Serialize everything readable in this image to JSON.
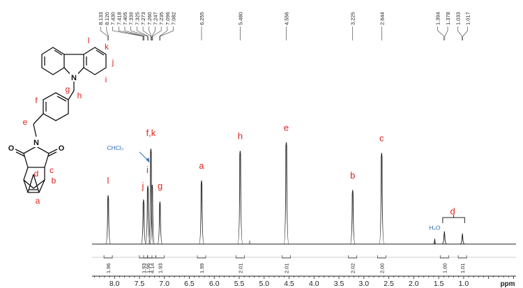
{
  "chart_data": {
    "type": "line",
    "title": "",
    "xlabel": "ppm",
    "ylabel": "",
    "xlim": [
      8.45,
      -0.05
    ],
    "x_reversed": true,
    "grid": false,
    "x_ticks": [
      "8.0",
      "7.5",
      "7.0",
      "6.5",
      "6.0",
      "5.5",
      "5.0",
      "4.5",
      "4.0",
      "3.5",
      "3.0",
      "2.5",
      "2.0",
      "1.5",
      "1.0",
      "ppm"
    ],
    "x_tick_values": [
      8.0,
      7.5,
      7.0,
      6.5,
      6.0,
      5.5,
      5.0,
      4.5,
      4.0,
      3.5,
      3.0,
      2.5,
      2.0,
      1.5,
      1.0
    ],
    "peak_picks": [
      "8.133",
      "8.120",
      "7.430",
      "7.418",
      "7.405",
      "7.339",
      "7.325",
      "7.273",
      "7.260",
      "7.247",
      "7.235",
      "7.096",
      "7.082",
      "6.255",
      "5.480",
      "4.556",
      "3.225",
      "2.644",
      "1.394",
      "1.378",
      "1.033",
      "1.017"
    ],
    "peaks": [
      {
        "shift": 8.127,
        "height": 0.46
      },
      {
        "shift": 7.418,
        "height": 0.42
      },
      {
        "shift": 7.332,
        "height": 0.55
      },
      {
        "shift": 7.27,
        "height": 0.9
      },
      {
        "shift": 7.245,
        "height": 0.56
      },
      {
        "shift": 7.089,
        "height": 0.4
      },
      {
        "shift": 6.255,
        "height": 0.6
      },
      {
        "shift": 5.48,
        "height": 0.88
      },
      {
        "shift": 4.556,
        "height": 0.96
      },
      {
        "shift": 3.225,
        "height": 0.51
      },
      {
        "shift": 2.644,
        "height": 0.86
      },
      {
        "shift": 1.58,
        "height": 0.05
      },
      {
        "shift": 1.386,
        "height": 0.12
      },
      {
        "shift": 1.025,
        "height": 0.1
      }
    ],
    "peak_labels": [
      {
        "text": "l",
        "shift": 8.13,
        "height": 0.57
      },
      {
        "text": "j",
        "shift": 7.43,
        "height": 0.52
      },
      {
        "text": "i",
        "shift": 7.34,
        "height": 0.67
      },
      {
        "text": "f,k",
        "shift": 7.27,
        "height": 1.02
      },
      {
        "text": "g",
        "shift": 7.085,
        "height": 0.52
      },
      {
        "text": "a",
        "shift": 6.255,
        "height": 0.71
      },
      {
        "text": "h",
        "shift": 5.48,
        "height": 0.99
      },
      {
        "text": "e",
        "shift": 4.556,
        "height": 1.07
      },
      {
        "text": "b",
        "shift": 3.225,
        "height": 0.62
      },
      {
        "text": "c",
        "shift": 2.644,
        "height": 0.97
      },
      {
        "text": "d",
        "shift": 1.22,
        "height": 0.28
      }
    ],
    "integrals": [
      {
        "value": "1.96",
        "shift": 8.127
      },
      {
        "value": "1.93",
        "shift": 7.418
      },
      {
        "value": "1.96",
        "shift": 7.332
      },
      {
        "value": "4.14",
        "shift": 7.255
      },
      {
        "value": "1.93",
        "shift": 7.089
      },
      {
        "value": "1.99",
        "shift": 6.255
      },
      {
        "value": "2.01",
        "shift": 5.48
      },
      {
        "value": "2.01",
        "shift": 4.556
      },
      {
        "value": "2.02",
        "shift": 3.225
      },
      {
        "value": "2.00",
        "shift": 2.644
      },
      {
        "value": "1.00",
        "shift": 1.386
      },
      {
        "value": "1.01",
        "shift": 1.025
      }
    ],
    "annotations": {
      "solvent": "CHCl₃",
      "water": "H₂O"
    }
  },
  "molecule": {
    "ring_labels": [
      "l",
      "k",
      "j",
      "i",
      "h",
      "g",
      "f",
      "e",
      "c",
      "d",
      "b",
      "a"
    ],
    "atoms": [
      "N",
      "O",
      "O",
      "N"
    ]
  },
  "colors": {
    "label": "#e3211c",
    "solvent": "#2e6db4",
    "trace": "#222222"
  }
}
